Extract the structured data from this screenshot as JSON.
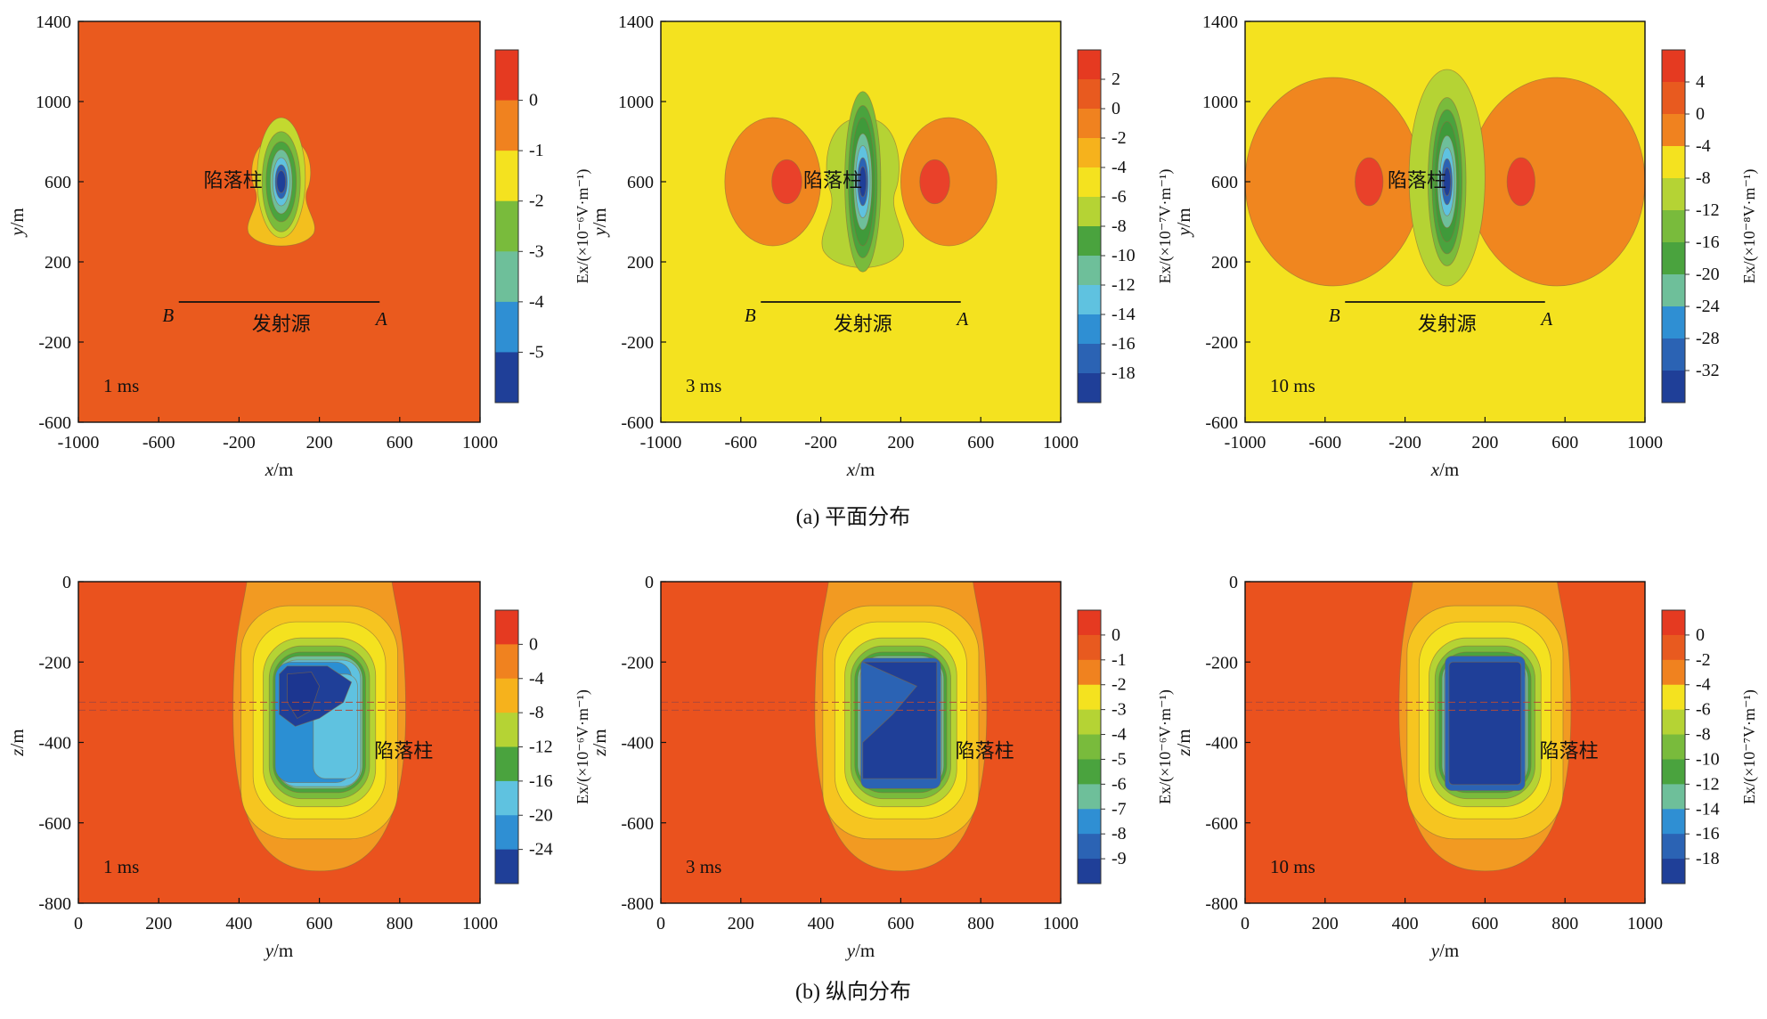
{
  "captions": {
    "a": "(a) 平面分布",
    "b": "(b) 纵向分布"
  },
  "annotations": {
    "collapse": "陷落柱",
    "source": "发射源",
    "pt_b": "B",
    "pt_a": "A"
  },
  "chart_data": [
    {
      "type": "heatmap",
      "row": "a",
      "time": "1 ms",
      "xlabel": {
        "var": "x",
        "unit": "/m"
      },
      "ylabel": {
        "var": "y",
        "unit": "/m"
      },
      "xlim": [
        -1000,
        1000
      ],
      "ylim": [
        -600,
        1400
      ],
      "xticks": [
        -1000,
        -600,
        -200,
        200,
        600,
        1000
      ],
      "yticks": [
        -600,
        -200,
        200,
        600,
        1000,
        1400
      ],
      "cbar_ticks": [
        "0",
        "-1",
        "-2",
        "-3",
        "-4",
        "-5"
      ],
      "cbar_label": "Ex/(×10⁻⁶V·m⁻¹)",
      "source_line": {
        "x": [
          -500,
          500
        ],
        "y": 0
      }
    },
    {
      "type": "heatmap",
      "row": "a",
      "time": "3 ms",
      "xlabel": {
        "var": "x",
        "unit": "/m"
      },
      "ylabel": {
        "var": "y",
        "unit": "/m"
      },
      "xlim": [
        -1000,
        1000
      ],
      "ylim": [
        -600,
        1400
      ],
      "xticks": [
        -1000,
        -600,
        -200,
        200,
        600,
        1000
      ],
      "yticks": [
        -600,
        -200,
        200,
        600,
        1000,
        1400
      ],
      "cbar_ticks": [
        "2",
        "0",
        "-2",
        "-4",
        "-6",
        "-8",
        "-10",
        "-12",
        "-14",
        "-16",
        "-18"
      ],
      "cbar_label": "Ex/(×10⁻⁷V·m⁻¹)",
      "source_line": {
        "x": [
          -500,
          500
        ],
        "y": 0
      }
    },
    {
      "type": "heatmap",
      "row": "a",
      "time": "10 ms",
      "xlabel": {
        "var": "x",
        "unit": "/m"
      },
      "ylabel": {
        "var": "y",
        "unit": "/m"
      },
      "xlim": [
        -1000,
        1000
      ],
      "ylim": [
        -600,
        1400
      ],
      "xticks": [
        -1000,
        -600,
        -200,
        200,
        600,
        1000
      ],
      "yticks": [
        -600,
        -200,
        200,
        600,
        1000,
        1400
      ],
      "cbar_ticks": [
        "4",
        "0",
        "-4",
        "-8",
        "-12",
        "-16",
        "-20",
        "-24",
        "-28",
        "-32"
      ],
      "cbar_label": "Ex/(×10⁻⁸V·m⁻¹)",
      "source_line": {
        "x": [
          -500,
          500
        ],
        "y": 0
      }
    },
    {
      "type": "heatmap",
      "row": "b",
      "time": "1 ms",
      "xlabel": {
        "var": "y",
        "unit": "/m"
      },
      "ylabel": {
        "var": "z",
        "unit": "/m"
      },
      "xlim": [
        0,
        1000
      ],
      "ylim": [
        -800,
        0
      ],
      "xticks": [
        0,
        200,
        400,
        600,
        800,
        1000
      ],
      "yticks": [
        -800,
        -600,
        -400,
        -200,
        0
      ],
      "cbar_ticks": [
        "0",
        "-4",
        "-8",
        "-12",
        "-16",
        "-20",
        "-24"
      ],
      "cbar_label": "Ex/(×10⁻⁶V·m⁻¹)",
      "seam": {
        "z": [
          -300,
          -320
        ]
      }
    },
    {
      "type": "heatmap",
      "row": "b",
      "time": "3 ms",
      "xlabel": {
        "var": "y",
        "unit": "/m"
      },
      "ylabel": {
        "var": "z",
        "unit": "/m"
      },
      "xlim": [
        0,
        1000
      ],
      "ylim": [
        -800,
        0
      ],
      "xticks": [
        0,
        200,
        400,
        600,
        800,
        1000
      ],
      "yticks": [
        -800,
        -600,
        -400,
        -200,
        0
      ],
      "cbar_ticks": [
        "0",
        "-1",
        "-2",
        "-3",
        "-4",
        "-5",
        "-6",
        "-7",
        "-8",
        "-9"
      ],
      "cbar_label": "Ex/(×10⁻⁶V·m⁻¹)",
      "seam": {
        "z": [
          -300,
          -320
        ]
      }
    },
    {
      "type": "heatmap",
      "row": "b",
      "time": "10 ms",
      "xlabel": {
        "var": "y",
        "unit": "/m"
      },
      "ylabel": {
        "var": "z",
        "unit": "/m"
      },
      "xlim": [
        0,
        1000
      ],
      "ylim": [
        -800,
        0
      ],
      "xticks": [
        0,
        200,
        400,
        600,
        800,
        1000
      ],
      "yticks": [
        -800,
        -600,
        -400,
        -200,
        0
      ],
      "cbar_ticks": [
        "0",
        "-2",
        "-4",
        "-6",
        "-8",
        "-10",
        "-12",
        "-14",
        "-16",
        "-18"
      ],
      "cbar_label": "Ex/(×10⁻⁷V·m⁻¹)",
      "seam": {
        "z": [
          -300,
          -320
        ]
      }
    }
  ]
}
